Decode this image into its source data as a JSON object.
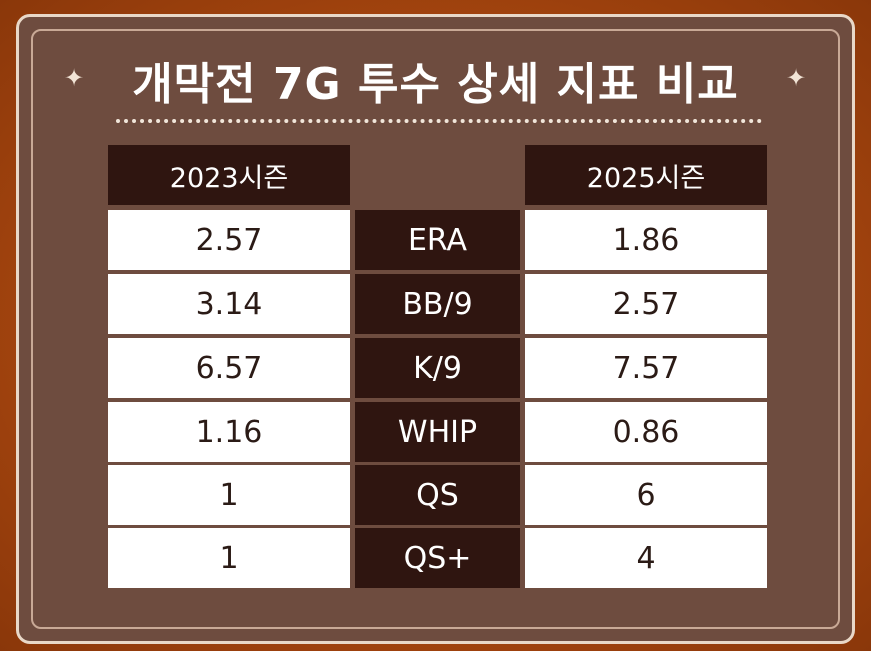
{
  "title": "개막전 7G 투수 상세 지표 비교",
  "sparkle": "✦",
  "headers": {
    "left": "2023시즌",
    "right": "2025시즌"
  },
  "rows": [
    {
      "left": "2.57",
      "metric": "ERA",
      "right": "1.86"
    },
    {
      "left": "3.14",
      "metric": "BB/9",
      "right": "2.57"
    },
    {
      "left": "6.57",
      "metric": "K/9",
      "right": "7.57"
    },
    {
      "left": "1.16",
      "metric": "WHIP",
      "right": "0.86"
    },
    {
      "left": "1",
      "metric": "QS",
      "right": "6"
    },
    {
      "left": "1",
      "metric": "QS+",
      "right": "4"
    }
  ],
  "colors": {
    "background": "#b14d12",
    "card": "#6e4c3f",
    "dark_cell": "#2f1510",
    "light_cell": "#ffffff"
  }
}
